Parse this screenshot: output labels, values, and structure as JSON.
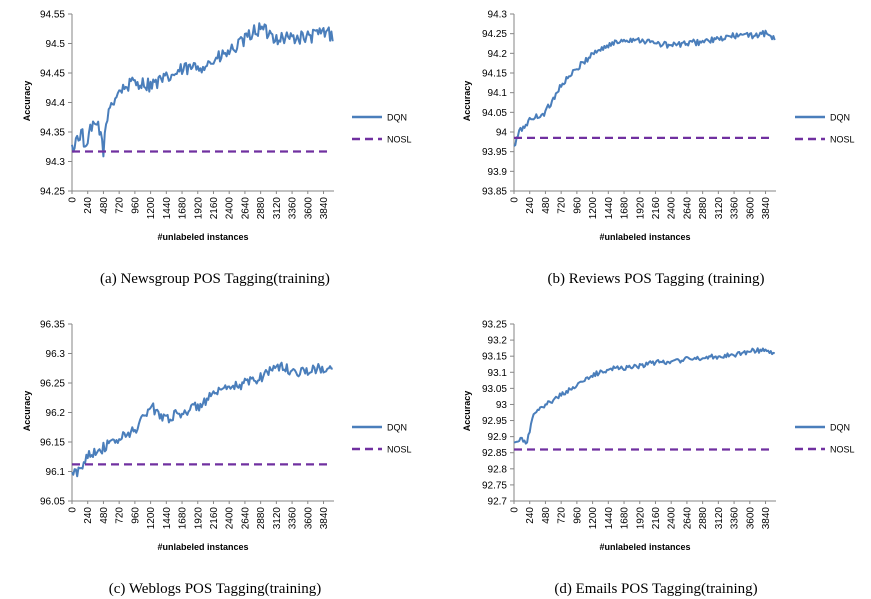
{
  "colors": {
    "dqn": "#4a7ebb",
    "nosl": "#7030a0",
    "axis": "#868686"
  },
  "chart_data": [
    {
      "type": "line",
      "caption": "(a)  Newsgroup POS Tagging(training)",
      "xlabel": "#unlabeled instances",
      "ylabel": "Accuracy",
      "yticks": [
        "94.25",
        "94.3",
        "94.35",
        "94.4",
        "94.45",
        "94.5",
        "94.55"
      ],
      "ylim": [
        94.25,
        94.55
      ],
      "xticks": [
        "0",
        "240",
        "480",
        "720",
        "960",
        "1200",
        "1440",
        "1680",
        "1920",
        "2160",
        "2400",
        "2640",
        "2880",
        "3120",
        "3360",
        "3600",
        "3840"
      ],
      "xlim": [
        0,
        4000
      ],
      "legend_position": "right",
      "series": [
        {
          "name": "DQN",
          "key": "dqn",
          "style": "solid",
          "anchors": [
            [
              0,
              94.32
            ],
            [
              80,
              94.34
            ],
            [
              150,
              94.35
            ],
            [
              230,
              94.31
            ],
            [
              260,
              94.35
            ],
            [
              400,
              94.365
            ],
            [
              480,
              94.32
            ],
            [
              560,
              94.39
            ],
            [
              720,
              94.42
            ],
            [
              960,
              94.435
            ],
            [
              1200,
              94.43
            ],
            [
              1440,
              94.44
            ],
            [
              1680,
              94.455
            ],
            [
              1920,
              94.46
            ],
            [
              2160,
              94.47
            ],
            [
              2400,
              94.485
            ],
            [
              2640,
              94.505
            ],
            [
              2760,
              94.52
            ],
            [
              2880,
              94.525
            ],
            [
              3120,
              94.51
            ],
            [
              3360,
              94.51
            ],
            [
              3600,
              94.51
            ],
            [
              3840,
              94.52
            ],
            [
              3980,
              94.515
            ]
          ],
          "noise": 0.012
        },
        {
          "name": "NOSL",
          "key": "nosl",
          "style": "dashed",
          "anchors": [
            [
              0,
              94.317
            ],
            [
              3960,
              94.317
            ]
          ],
          "noise": 0
        }
      ]
    },
    {
      "type": "line",
      "caption": "(b)  Reviews POS Tagging (training)",
      "xlabel": "#unlabeled instances",
      "ylabel": "Accuracy",
      "yticks": [
        "93.85",
        "93.9",
        "93.95",
        "94",
        "94.05",
        "94.1",
        "94.15",
        "94.2",
        "94.25",
        "94.3"
      ],
      "ylim": [
        93.85,
        94.3
      ],
      "xticks": [
        "0",
        "240",
        "480",
        "720",
        "960",
        "1200",
        "1440",
        "1680",
        "1920",
        "2160",
        "2400",
        "2640",
        "2880",
        "3120",
        "3360",
        "3600",
        "3840"
      ],
      "xlim": [
        0,
        4000
      ],
      "legend_position": "right",
      "series": [
        {
          "name": "DQN",
          "key": "dqn",
          "style": "solid",
          "anchors": [
            [
              0,
              93.96
            ],
            [
              80,
              94.0
            ],
            [
              240,
              94.03
            ],
            [
              480,
              94.05
            ],
            [
              720,
              94.12
            ],
            [
              960,
              94.16
            ],
            [
              1200,
              94.2
            ],
            [
              1440,
              94.22
            ],
            [
              1680,
              94.235
            ],
            [
              1920,
              94.235
            ],
            [
              2160,
              94.225
            ],
            [
              2400,
              94.22
            ],
            [
              2640,
              94.225
            ],
            [
              2880,
              94.23
            ],
            [
              3120,
              94.235
            ],
            [
              3360,
              94.245
            ],
            [
              3600,
              94.245
            ],
            [
              3840,
              94.25
            ],
            [
              3980,
              94.24
            ]
          ],
          "noise": 0.008
        },
        {
          "name": "NOSL",
          "key": "nosl",
          "style": "dashed",
          "anchors": [
            [
              0,
              93.985
            ],
            [
              3960,
              93.985
            ]
          ],
          "noise": 0
        }
      ]
    },
    {
      "type": "line",
      "caption": "(c)  Weblogs POS Tagging(training)",
      "xlabel": "#unlabeled instances",
      "ylabel": "Accuracy",
      "yticks": [
        "96.05",
        "96.1",
        "96.15",
        "96.2",
        "96.25",
        "96.3",
        "96.35"
      ],
      "ylim": [
        96.05,
        96.35
      ],
      "xticks": [
        "0",
        "240",
        "480",
        "720",
        "960",
        "1200",
        "1440",
        "1680",
        "1920",
        "2160",
        "2400",
        "2640",
        "2880",
        "3120",
        "3360",
        "3600",
        "3840"
      ],
      "xlim": [
        0,
        4000
      ],
      "legend_position": "right",
      "series": [
        {
          "name": "DQN",
          "key": "dqn",
          "style": "solid",
          "anchors": [
            [
              0,
              96.095
            ],
            [
              120,
              96.1
            ],
            [
              240,
              96.13
            ],
            [
              480,
              96.14
            ],
            [
              720,
              96.155
            ],
            [
              960,
              96.17
            ],
            [
              1200,
              96.21
            ],
            [
              1440,
              96.19
            ],
            [
              1680,
              96.2
            ],
            [
              1920,
              96.21
            ],
            [
              2160,
              96.23
            ],
            [
              2400,
              96.24
            ],
            [
              2640,
              96.25
            ],
            [
              2880,
              96.26
            ],
            [
              3120,
              96.28
            ],
            [
              3360,
              96.27
            ],
            [
              3600,
              96.27
            ],
            [
              3840,
              96.275
            ],
            [
              3980,
              96.27
            ]
          ],
          "noise": 0.009
        },
        {
          "name": "NOSL",
          "key": "nosl",
          "style": "dashed",
          "anchors": [
            [
              0,
              96.112
            ],
            [
              3960,
              96.112
            ]
          ],
          "noise": 0
        }
      ]
    },
    {
      "type": "line",
      "caption": "(d)  Emails POS Tagging(training)",
      "xlabel": "#unlabeled instances",
      "ylabel": "Accuracy",
      "yticks": [
        "92.7",
        "92.75",
        "92.8",
        "92.85",
        "92.9",
        "92.95",
        "93",
        "93.05",
        "93.1",
        "93.15",
        "93.2",
        "93.25"
      ],
      "ylim": [
        92.7,
        93.25
      ],
      "xticks": [
        "0",
        "240",
        "480",
        "720",
        "960",
        "1200",
        "1440",
        "1680",
        "1920",
        "2160",
        "2400",
        "2640",
        "2880",
        "3120",
        "3360",
        "3600",
        "3840"
      ],
      "xlim": [
        0,
        4000
      ],
      "legend_position": "right",
      "series": [
        {
          "name": "DQN",
          "key": "dqn",
          "style": "solid",
          "anchors": [
            [
              0,
              92.88
            ],
            [
              120,
              92.89
            ],
            [
              200,
              92.88
            ],
            [
              280,
              92.96
            ],
            [
              480,
              93.0
            ],
            [
              720,
              93.03
            ],
            [
              960,
              93.06
            ],
            [
              1200,
              93.09
            ],
            [
              1440,
              93.11
            ],
            [
              1680,
              93.115
            ],
            [
              1920,
              93.12
            ],
            [
              2160,
              93.13
            ],
            [
              2400,
              93.135
            ],
            [
              2640,
              93.14
            ],
            [
              2880,
              93.145
            ],
            [
              3120,
              93.15
            ],
            [
              3360,
              93.155
            ],
            [
              3600,
              93.165
            ],
            [
              3840,
              93.17
            ],
            [
              3980,
              93.155
            ]
          ],
          "noise": 0.008
        },
        {
          "name": "NOSL",
          "key": "nosl",
          "style": "dashed",
          "anchors": [
            [
              0,
              92.86
            ],
            [
              3960,
              92.86
            ]
          ],
          "noise": 0
        }
      ]
    }
  ]
}
